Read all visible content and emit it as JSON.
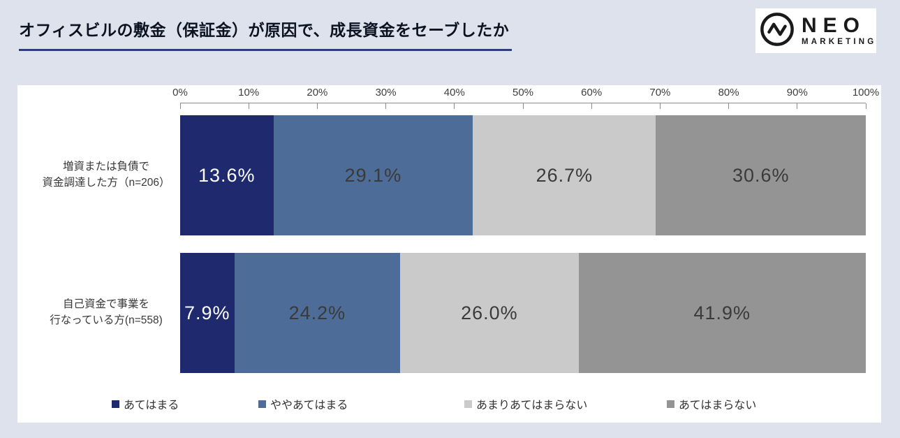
{
  "header": {
    "title": "オフィスビルの敷金（保証金）が原因で、成長資金をセーブしたか"
  },
  "logo": {
    "line1": "NEO",
    "line2": "MARKETING",
    "icon": "pulse-circle-icon"
  },
  "colors": {
    "background": "#dee2ec",
    "panel": "#ffffff",
    "title_underline": "#2d3e7c",
    "axis": "#8c8c8c"
  },
  "chart_data": {
    "type": "bar",
    "orientation": "horizontal-stacked",
    "title": "オフィスビルの敷金（保証金）が原因で、成長資金をセーブしたか",
    "x_axis": {
      "position": "top",
      "min": 0,
      "max": 100,
      "ticks": [
        "0%",
        "10%",
        "20%",
        "30%",
        "40%",
        "50%",
        "60%",
        "70%",
        "80%",
        "90%",
        "100%"
      ]
    },
    "categories": [
      {
        "line1": "増資または負債で",
        "line2": "資金調達した方（n=206）"
      },
      {
        "line1": "自己資金で事業を",
        "line2": "行なっている方(n=558)"
      }
    ],
    "series": [
      {
        "name": "あてはまる",
        "color": "#1f2a6e",
        "label_color": "#ffffff",
        "values": [
          13.6,
          7.9
        ],
        "labels": [
          "13.6%",
          "7.9%"
        ]
      },
      {
        "name": "ややあてはまる",
        "color": "#4d6c98",
        "label_color": "#3a3a3a",
        "values": [
          29.1,
          24.2
        ],
        "labels": [
          "29.1%",
          "24.2%"
        ]
      },
      {
        "name": "あまりあてはまらない",
        "color": "#cacaca",
        "label_color": "#3a3a3a",
        "values": [
          26.7,
          26.0
        ],
        "labels": [
          "26.7%",
          "26.0%"
        ]
      },
      {
        "name": "あてはまらない",
        "color": "#949494",
        "label_color": "#3a3a3a",
        "values": [
          30.6,
          41.9
        ],
        "labels": [
          "30.6%",
          "41.9%"
        ]
      }
    ],
    "value_suffix": "%",
    "legend_position": "bottom",
    "grid": false
  }
}
